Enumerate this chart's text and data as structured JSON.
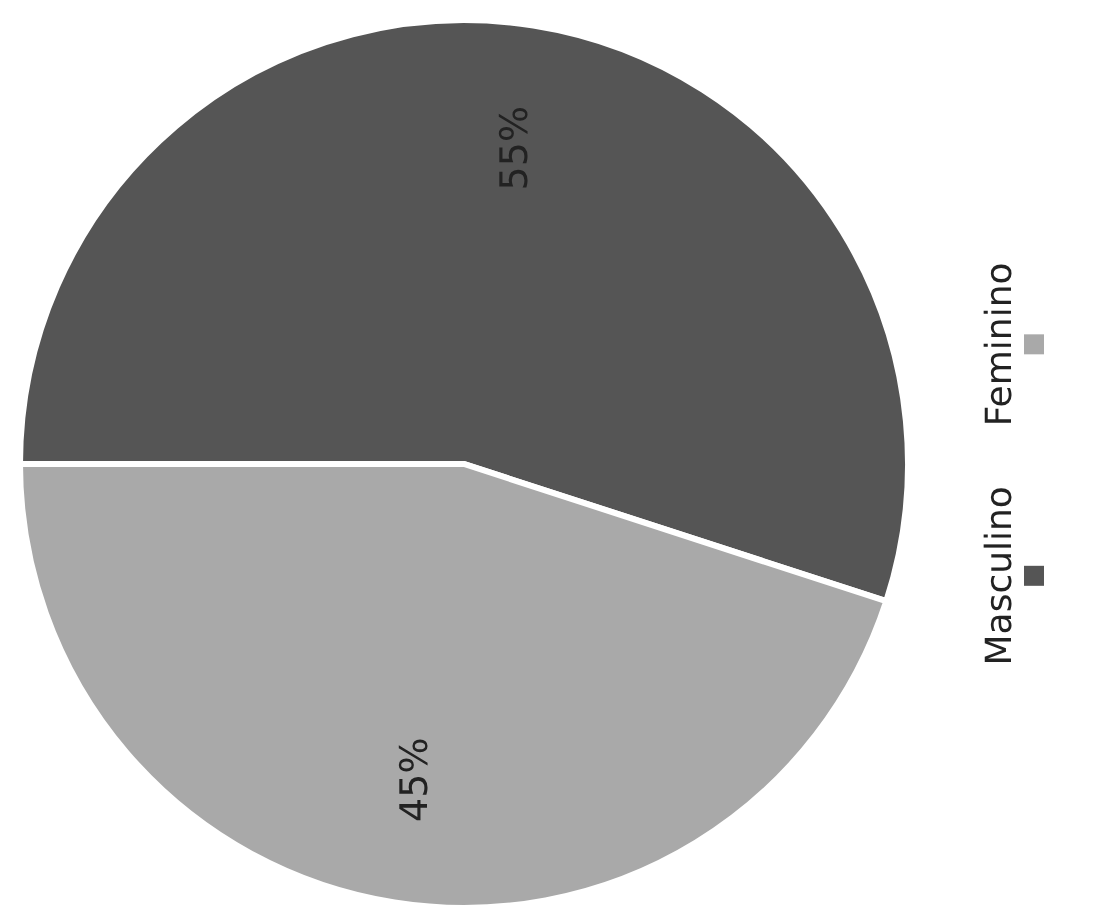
{
  "chart_data": {
    "type": "pie",
    "categories": [
      "Masculino",
      "Feminino"
    ],
    "values": [
      55,
      45
    ],
    "colors": [
      "#555555",
      "#a9a9a9"
    ],
    "value_labels": [
      "55%",
      "45%"
    ],
    "legend": "right"
  }
}
